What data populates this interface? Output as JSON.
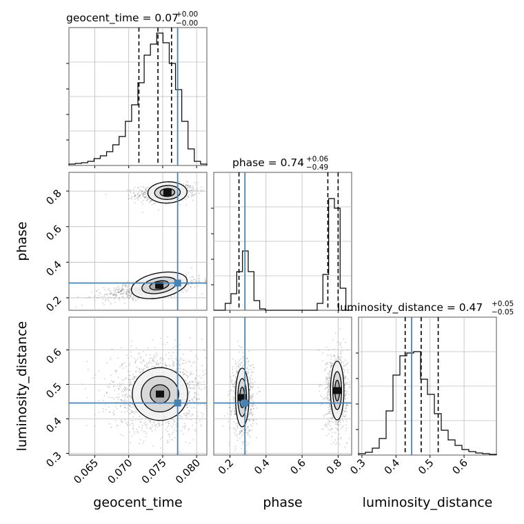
{
  "chart_data": {
    "type": "corner",
    "parameters": [
      "geocent_time",
      "phase",
      "luminosity_distance"
    ],
    "truths": {
      "geocent_time": 0.0772,
      "phase": 0.283,
      "luminosity_distance": 0.446
    },
    "truth_color": "#4682b4",
    "panels": {
      "geocent_time": {
        "title": "geocent_time = 0.07",
        "title_plus": "+0.00",
        "title_minus": "−0.00",
        "xlim": [
          0.0612,
          0.0815
        ],
        "quantiles": [
          0.0715,
          0.0743,
          0.0763
        ],
        "hist": [
          0.01,
          0.015,
          0.02,
          0.03,
          0.05,
          0.07,
          0.1,
          0.15,
          0.21,
          0.32,
          0.44,
          0.6,
          0.8,
          0.88,
          0.96,
          0.89,
          0.74,
          0.55,
          0.32,
          0.12,
          0.03,
          0.01
        ]
      },
      "phase": {
        "title": "phase = 0.74",
        "title_plus": "+0.06",
        "title_minus": "−0.49",
        "xlim": [
          0.11,
          0.875
        ],
        "quantiles": [
          0.25,
          0.743,
          0.8
        ],
        "hist": [
          0,
          0,
          0.05,
          0.12,
          0.28,
          0.43,
          0.28,
          0.07,
          0.01,
          0,
          0,
          0,
          0,
          0,
          0,
          0,
          0,
          0,
          0.05,
          0.26,
          0.81,
          0.74,
          0.16,
          0
        ]
      },
      "luminosity_distance": {
        "title": "luminosity_distance = 0.47",
        "title_plus": "+0.05",
        "title_minus": "−0.05",
        "xlim": [
          0.29,
          0.695
        ],
        "quantiles": [
          0.427,
          0.474,
          0.524
        ],
        "hist": [
          0.01,
          0.02,
          0.05,
          0.12,
          0.32,
          0.58,
          0.72,
          0.74,
          0.75,
          0.55,
          0.44,
          0.3,
          0.18,
          0.11,
          0.07,
          0.04,
          0.025,
          0.015,
          0.01,
          0.005
        ]
      }
    },
    "axes": {
      "geocent_time": {
        "label": "geocent_time",
        "ticks": [
          0.065,
          0.07,
          0.075,
          0.08
        ],
        "tick_labels": [
          "0.065",
          "0.070",
          "0.075",
          "0.080"
        ]
      },
      "phase": {
        "label": "phase",
        "ylim": [
          0.13,
          0.905
        ],
        "ticks": [
          0.2,
          0.4,
          0.6,
          0.8
        ],
        "tick_labels": [
          "0.2",
          "0.4",
          "0.6",
          "0.8"
        ]
      },
      "luminosity_distance": {
        "label": "luminosity_distance",
        "ylim": [
          0.295,
          0.695
        ],
        "ticks": [
          0.3,
          0.4,
          0.5,
          0.6
        ],
        "tick_labels": [
          "0.3",
          "0.4",
          "0.5",
          "0.6"
        ]
      }
    },
    "grid": true
  }
}
